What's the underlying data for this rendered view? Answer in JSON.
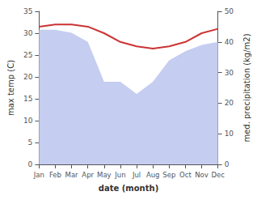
{
  "chart_data": {
    "type": "line",
    "xlabel": "date (month)",
    "ylabel": "max temp (C)",
    "y2label": "med. precipitation (kg/m2)",
    "categories": [
      "Jan",
      "Feb",
      "Mar",
      "Apr",
      "May",
      "Jun",
      "Jul",
      "Aug",
      "Sep",
      "Oct",
      "Nov",
      "Dec"
    ],
    "series": [
      {
        "type": "area",
        "color": "#c5cdf0",
        "axis": "y2",
        "values": [
          44,
          44,
          43,
          40,
          27,
          27,
          23,
          27,
          34,
          37,
          39,
          40
        ]
      },
      {
        "type": "line",
        "color": "#cc3333",
        "values": [
          31.5,
          32.0,
          32.0,
          31.5,
          30.0,
          28.0,
          27.0,
          26.5,
          27.0,
          28.0,
          30.0,
          31.0
        ]
      }
    ],
    "ylim": [
      0,
      35
    ],
    "yticks": [
      0,
      5,
      10,
      15,
      20,
      25,
      30,
      35
    ],
    "y2lim": [
      0,
      50
    ],
    "y2ticks": [
      0,
      10,
      20,
      30,
      40,
      50
    ],
    "grid": false
  }
}
